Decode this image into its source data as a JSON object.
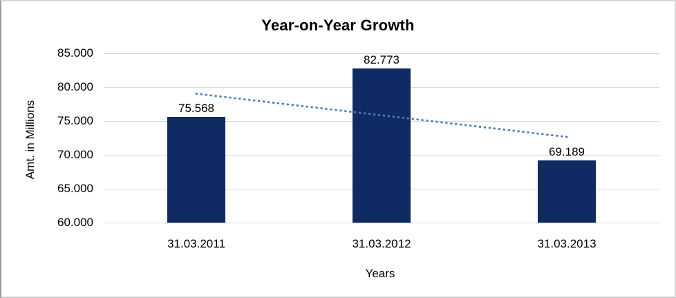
{
  "chart_data": {
    "type": "bar",
    "title": "Year-on-Year Growth",
    "xlabel": "Years",
    "ylabel": "Amt. in Millions",
    "categories": [
      "31.03.2011",
      "31.03.2012",
      "31.03.2013"
    ],
    "values": [
      75568,
      82773,
      69189
    ],
    "value_labels": [
      "75.568",
      "82.773",
      "69.189"
    ],
    "ylim": [
      60000,
      85000
    ],
    "yticks": [
      {
        "value": 85000,
        "label": "85.000"
      },
      {
        "value": 80000,
        "label": "80.000"
      },
      {
        "value": 75000,
        "label": "75.000"
      },
      {
        "value": 70000,
        "label": "70.000"
      },
      {
        "value": 65000,
        "label": "65.000"
      },
      {
        "value": 60000,
        "label": "60.000"
      }
    ],
    "grid": true,
    "legend": "none",
    "trendline": {
      "type": "linear",
      "style": "dotted",
      "values": [
        79030,
        75840,
        72650
      ]
    },
    "colors": {
      "bar": "#102A64",
      "trendline": "#4A7EBB",
      "gridline": "#D9D9D9",
      "text": "#000000",
      "background": "#FFFFFF"
    }
  }
}
